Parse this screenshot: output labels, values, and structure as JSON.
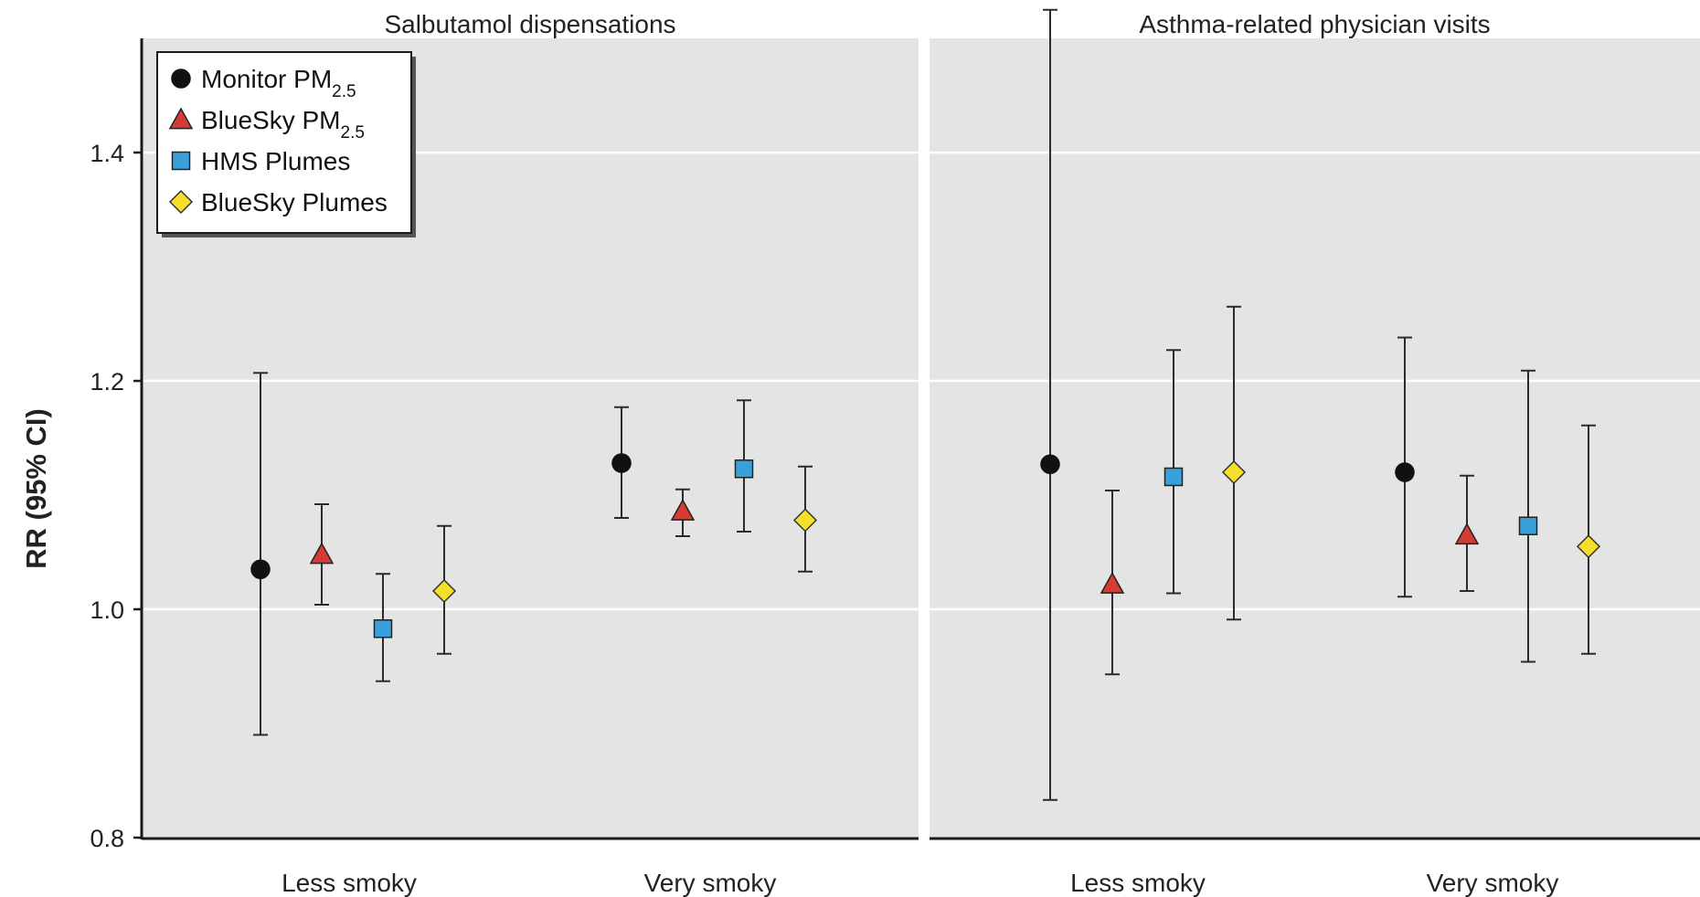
{
  "chart_data": {
    "type": "scatter",
    "ylabel": "RR (95% CI)",
    "ylim": [
      0.8,
      1.5
    ],
    "yticks": [
      "0.8",
      "1.0",
      "1.2",
      "1.4"
    ],
    "grid": true,
    "legend_position": "top-left",
    "categories": [
      "Less smoky",
      "Very smoky"
    ],
    "series": [
      {
        "name": "Monitor PM",
        "name_sub": "2.5",
        "marker": "circle",
        "color": "#111111"
      },
      {
        "name": "BlueSky PM",
        "name_sub": "2.5",
        "marker": "triangle",
        "color": "#d63a35"
      },
      {
        "name": "HMS Plumes",
        "name_sub": "",
        "marker": "square",
        "color": "#3aa0da"
      },
      {
        "name": "BlueSky Plumes",
        "name_sub": "",
        "marker": "diamond",
        "color": "#f5df2a"
      }
    ],
    "panels": [
      {
        "title": "Salbutamol dispensations",
        "points": [
          [
            {
              "rr": 1.035,
              "lo": 0.89,
              "hi": 1.207
            },
            {
              "rr": 1.048,
              "lo": 1.004,
              "hi": 1.092
            },
            {
              "rr": 0.983,
              "lo": 0.937,
              "hi": 1.031
            },
            {
              "rr": 1.016,
              "lo": 0.961,
              "hi": 1.073
            }
          ],
          [
            {
              "rr": 1.128,
              "lo": 1.08,
              "hi": 1.177
            },
            {
              "rr": 1.086,
              "lo": 1.064,
              "hi": 1.105
            },
            {
              "rr": 1.123,
              "lo": 1.068,
              "hi": 1.183
            },
            {
              "rr": 1.078,
              "lo": 1.033,
              "hi": 1.125
            }
          ]
        ]
      },
      {
        "title": "Asthma-related physician visits",
        "points": [
          [
            {
              "rr": 1.127,
              "lo": 0.833,
              "hi": 1.525
            },
            {
              "rr": 1.022,
              "lo": 0.943,
              "hi": 1.104
            },
            {
              "rr": 1.116,
              "lo": 1.014,
              "hi": 1.227
            },
            {
              "rr": 1.12,
              "lo": 0.991,
              "hi": 1.265
            }
          ],
          [
            {
              "rr": 1.12,
              "lo": 1.011,
              "hi": 1.238
            },
            {
              "rr": 1.065,
              "lo": 1.016,
              "hi": 1.117
            },
            {
              "rr": 1.073,
              "lo": 0.954,
              "hi": 1.209
            },
            {
              "rr": 1.055,
              "lo": 0.961,
              "hi": 1.161
            }
          ]
        ]
      }
    ]
  }
}
